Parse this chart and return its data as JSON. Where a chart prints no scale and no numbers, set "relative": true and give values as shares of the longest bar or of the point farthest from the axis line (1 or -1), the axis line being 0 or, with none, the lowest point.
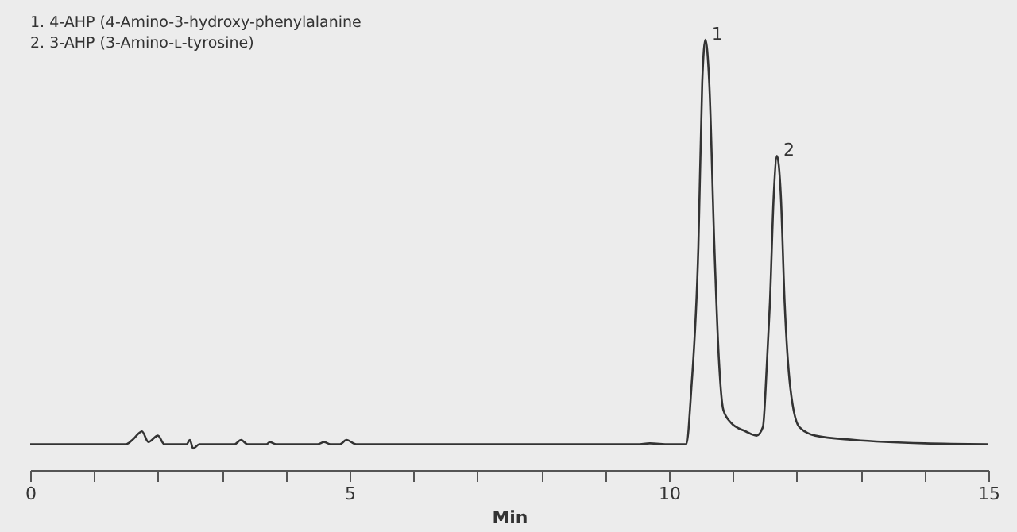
{
  "chart_data": {
    "type": "line",
    "relative": true,
    "xlabel": "Min",
    "xlim": [
      0,
      15
    ],
    "xticks": [
      0,
      {
        "value": 1,
        "label": null
      },
      {
        "value": 2,
        "label": null
      },
      {
        "value": 3,
        "label": null
      },
      {
        "value": 4,
        "label": null
      },
      5,
      {
        "value": 6,
        "label": null
      },
      {
        "value": 7,
        "label": null
      },
      {
        "value": 8,
        "label": null
      },
      {
        "value": 9,
        "label": null
      },
      10,
      {
        "value": 11,
        "label": null
      },
      {
        "value": 12,
        "label": null
      },
      {
        "value": 13,
        "label": null
      },
      {
        "value": 14,
        "label": null
      },
      15
    ],
    "grid": false,
    "series": [
      {
        "color": "#333333",
        "x": [
          0,
          1.5,
          1.6,
          1.75,
          1.85,
          2.0,
          2.1,
          2.45,
          2.5,
          2.55,
          2.65,
          3.2,
          3.3,
          3.4,
          3.7,
          3.75,
          3.85,
          4.5,
          4.6,
          4.7,
          4.85,
          4.95,
          5.1,
          9.5,
          9.7,
          10.0,
          10.27,
          10.35,
          10.46,
          10.52,
          10.57,
          10.63,
          10.71,
          10.78,
          10.85,
          10.97,
          11.2,
          11.37,
          11.47,
          11.53,
          11.58,
          11.64,
          11.69,
          11.75,
          11.81,
          11.9,
          12.04,
          12.29,
          12.9,
          14.0,
          15
        ],
        "values": [
          0.06,
          0.06,
          0.07,
          0.09,
          0.065,
          0.08,
          0.06,
          0.06,
          0.07,
          0.05,
          0.06,
          0.06,
          0.07,
          0.06,
          0.06,
          0.065,
          0.06,
          0.06,
          0.065,
          0.06,
          0.06,
          0.07,
          0.06,
          0.06,
          0.062,
          0.06,
          0.06,
          0.19,
          0.52,
          0.9,
          1,
          0.9,
          0.52,
          0.26,
          0.14,
          0.11,
          0.09,
          0.08,
          0.1,
          0.24,
          0.39,
          0.64,
          0.73,
          0.64,
          0.39,
          0.19,
          0.1,
          0.08,
          0.07,
          0.062,
          0.06
        ]
      }
    ],
    "annotations": [
      "1.    4-AHP (4-Amino-3-hydroxy-phenylalanine",
      "2.    3-AHP (3-Amino-ʟ-tyrosine)",
      {
        "text": "1",
        "x": 10.57,
        "y": 1
      },
      {
        "text": "2",
        "x": 11.69,
        "y": 0.73
      }
    ]
  }
}
